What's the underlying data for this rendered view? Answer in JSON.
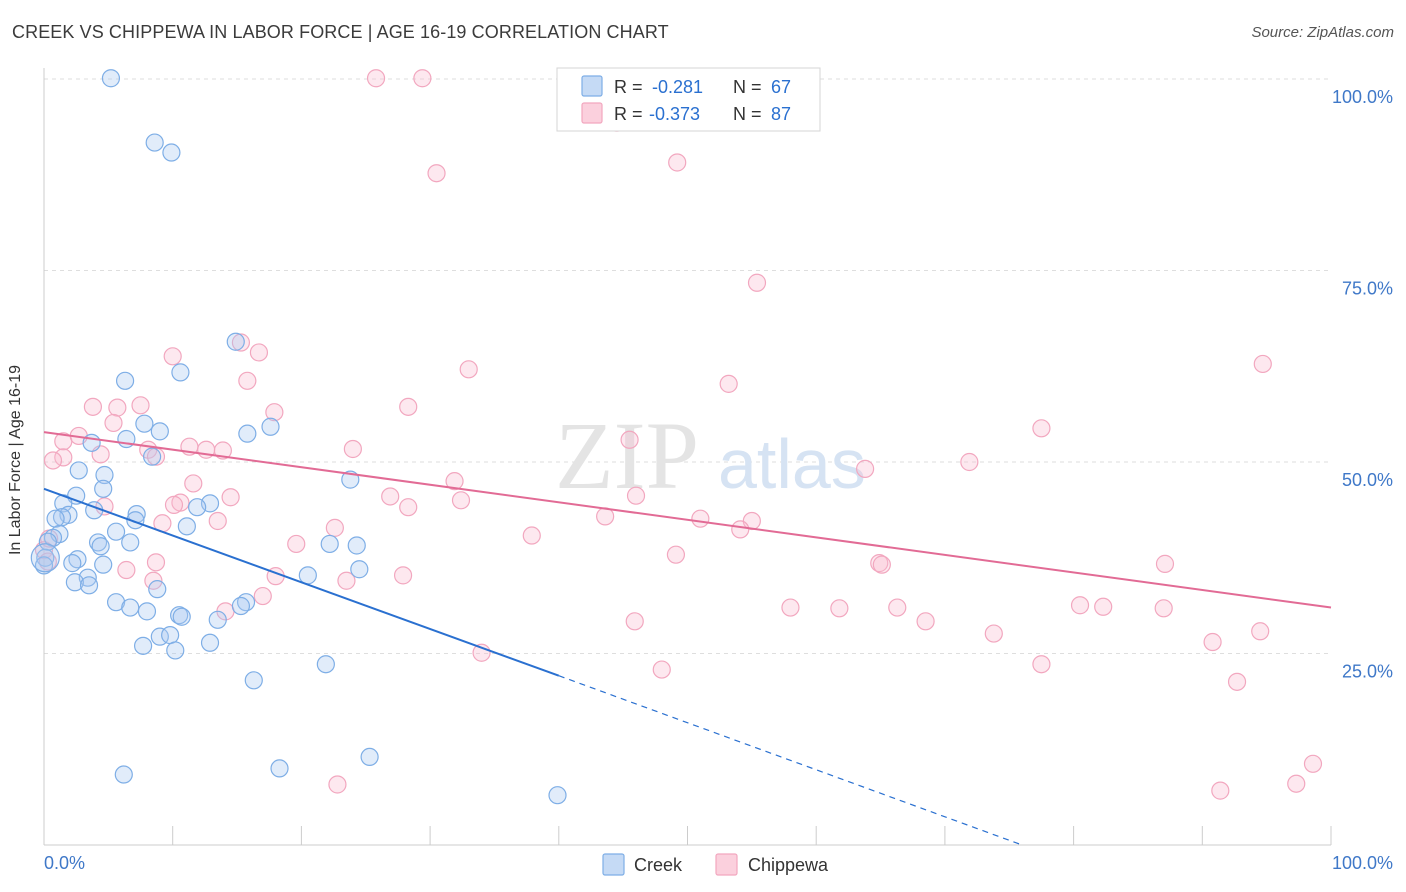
{
  "header": {
    "title": "CREEK VS CHIPPEWA IN LABOR FORCE | AGE 16-19 CORRELATION CHART",
    "source": "Source: ZipAtlas.com"
  },
  "watermark": {
    "zip": "ZIP",
    "atlas": "atlas"
  },
  "legend_top": {
    "rows": [
      {
        "r_label": "R =",
        "r_value": "-0.281",
        "n_label": "N =",
        "n_value": "67",
        "color": "#7eaee6"
      },
      {
        "r_label": "R =",
        "r_value": "-0.373",
        "n_label": "N =",
        "n_value": "87",
        "color": "#f2a7bf"
      }
    ]
  },
  "legend_bottom": {
    "items": [
      "Creek",
      "Chippewa"
    ]
  },
  "chart_data": {
    "type": "scatter",
    "title": "CREEK VS CHIPPEWA IN LABOR FORCE | AGE 16-19 CORRELATION CHART",
    "ylabel": "In Labor Force | Age 16-19",
    "xlabel": "",
    "xlim": [
      0,
      100
    ],
    "ylim": [
      0,
      102
    ],
    "x_tick_labels": [
      "0.0%",
      "100.0%"
    ],
    "y_tick_values": [
      25,
      50,
      75,
      100
    ],
    "y_tick_labels": [
      "25.0%",
      "50.0%",
      "75.0%",
      "100.0%"
    ],
    "grid": true,
    "legend": "top-center",
    "series": [
      {
        "name": "Creek",
        "color": "#7eaee6",
        "line_color": "#2a70d0",
        "trend": {
          "x0": 0,
          "y0": 46.5,
          "x1": 40,
          "y1": 22.1,
          "dash_to_x": 76,
          "dash_to_y": 0
        },
        "points": [
          [
            5.2,
            100.1
          ],
          [
            8.6,
            91.7
          ],
          [
            9.9,
            90.4
          ],
          [
            14.9,
            65.7
          ],
          [
            10.6,
            61.7
          ],
          [
            6.3,
            60.6
          ],
          [
            7.8,
            55.0
          ],
          [
            17.6,
            54.6
          ],
          [
            9.0,
            54.0
          ],
          [
            15.8,
            53.7
          ],
          [
            6.4,
            53.0
          ],
          [
            3.7,
            52.5
          ],
          [
            8.4,
            50.7
          ],
          [
            2.7,
            48.9
          ],
          [
            4.7,
            48.3
          ],
          [
            23.8,
            47.7
          ],
          [
            4.6,
            46.5
          ],
          [
            2.5,
            45.6
          ],
          [
            1.5,
            44.6
          ],
          [
            12.9,
            44.6
          ],
          [
            11.9,
            44.1
          ],
          [
            3.9,
            43.7
          ],
          [
            7.2,
            43.2
          ],
          [
            1.9,
            43.1
          ],
          [
            1.4,
            42.8
          ],
          [
            0.9,
            42.6
          ],
          [
            7.1,
            42.4
          ],
          [
            11.1,
            41.6
          ],
          [
            5.6,
            40.9
          ],
          [
            1.2,
            40.6
          ],
          [
            0.7,
            40.1
          ],
          [
            0.3,
            39.6
          ],
          [
            4.2,
            39.5
          ],
          [
            6.7,
            39.5
          ],
          [
            22.2,
            39.3
          ],
          [
            24.3,
            39.1
          ],
          [
            4.4,
            39.0
          ],
          [
            0.1,
            37.5
          ],
          [
            2.6,
            37.3
          ],
          [
            2.2,
            36.8
          ],
          [
            4.6,
            36.6
          ],
          [
            0.0,
            36.5
          ],
          [
            24.5,
            36.0
          ],
          [
            20.5,
            35.2
          ],
          [
            3.4,
            34.9
          ],
          [
            2.4,
            34.3
          ],
          [
            3.5,
            33.9
          ],
          [
            8.8,
            33.4
          ],
          [
            5.6,
            31.7
          ],
          [
            15.7,
            31.7
          ],
          [
            15.3,
            31.2
          ],
          [
            6.7,
            31.0
          ],
          [
            8.0,
            30.5
          ],
          [
            10.5,
            30.0
          ],
          [
            10.7,
            29.8
          ],
          [
            13.5,
            29.4
          ],
          [
            9.0,
            27.2
          ],
          [
            9.8,
            27.4
          ],
          [
            7.7,
            26.0
          ],
          [
            12.9,
            26.4
          ],
          [
            10.2,
            25.4
          ],
          [
            21.9,
            23.6
          ],
          [
            16.3,
            21.5
          ],
          [
            25.3,
            11.5
          ],
          [
            18.3,
            10.0
          ],
          [
            6.2,
            9.2
          ],
          [
            39.9,
            6.5
          ]
        ]
      },
      {
        "name": "Chippewa",
        "color": "#f2a7bf",
        "line_color": "#e26b95",
        "trend": {
          "x0": 0,
          "y0": 53.9,
          "x1": 100,
          "y1": 31.0
        },
        "points": [
          [
            25.8,
            100.1
          ],
          [
            29.4,
            100.1
          ],
          [
            44.5,
            94.3
          ],
          [
            49.2,
            89.1
          ],
          [
            30.5,
            87.7
          ],
          [
            55.4,
            73.4
          ],
          [
            15.3,
            65.6
          ],
          [
            10.0,
            63.8
          ],
          [
            16.7,
            64.3
          ],
          [
            94.7,
            62.8
          ],
          [
            33.0,
            62.1
          ],
          [
            15.8,
            60.6
          ],
          [
            53.2,
            60.2
          ],
          [
            7.5,
            57.4
          ],
          [
            5.7,
            57.1
          ],
          [
            3.8,
            57.2
          ],
          [
            17.9,
            56.5
          ],
          [
            28.3,
            57.2
          ],
          [
            5.4,
            55.1
          ],
          [
            77.5,
            54.4
          ],
          [
            1.5,
            52.7
          ],
          [
            2.7,
            53.4
          ],
          [
            45.5,
            52.9
          ],
          [
            11.3,
            52.0
          ],
          [
            12.6,
            51.6
          ],
          [
            8.1,
            51.6
          ],
          [
            13.9,
            51.5
          ],
          [
            24.0,
            51.7
          ],
          [
            4.4,
            51.0
          ],
          [
            8.7,
            50.7
          ],
          [
            1.5,
            50.6
          ],
          [
            0.7,
            50.2
          ],
          [
            71.9,
            50.0
          ],
          [
            63.8,
            49.1
          ],
          [
            11.6,
            47.2
          ],
          [
            31.9,
            47.5
          ],
          [
            26.9,
            45.5
          ],
          [
            14.5,
            45.4
          ],
          [
            32.4,
            45.0
          ],
          [
            46.0,
            45.6
          ],
          [
            10.6,
            44.7
          ],
          [
            10.1,
            44.4
          ],
          [
            28.3,
            44.1
          ],
          [
            4.7,
            44.2
          ],
          [
            43.6,
            42.9
          ],
          [
            51.0,
            42.6
          ],
          [
            55.0,
            42.3
          ],
          [
            13.5,
            42.3
          ],
          [
            9.2,
            42.0
          ],
          [
            22.6,
            41.4
          ],
          [
            54.1,
            41.2
          ],
          [
            37.9,
            40.4
          ],
          [
            19.6,
            39.3
          ],
          [
            0.0,
            38.5
          ],
          [
            49.1,
            37.9
          ],
          [
            8.7,
            36.9
          ],
          [
            64.9,
            36.8
          ],
          [
            65.1,
            36.6
          ],
          [
            87.1,
            36.7
          ],
          [
            6.4,
            35.9
          ],
          [
            18.0,
            35.1
          ],
          [
            27.9,
            35.2
          ],
          [
            8.5,
            34.5
          ],
          [
            23.5,
            34.5
          ],
          [
            17.0,
            32.5
          ],
          [
            14.1,
            30.5
          ],
          [
            58.0,
            31.0
          ],
          [
            61.8,
            30.9
          ],
          [
            66.3,
            31.0
          ],
          [
            80.5,
            31.3
          ],
          [
            82.3,
            31.1
          ],
          [
            87.0,
            30.9
          ],
          [
            68.5,
            29.2
          ],
          [
            45.9,
            29.2
          ],
          [
            73.8,
            27.6
          ],
          [
            94.5,
            27.9
          ],
          [
            90.8,
            26.5
          ],
          [
            34.0,
            25.1
          ],
          [
            48.0,
            22.9
          ],
          [
            77.5,
            23.6
          ],
          [
            92.7,
            21.3
          ],
          [
            98.6,
            10.6
          ],
          [
            22.8,
            7.9
          ],
          [
            97.3,
            8.0
          ],
          [
            91.4,
            7.1
          ],
          [
            0.3,
            37.0
          ],
          [
            0.4,
            40.0
          ]
        ]
      }
    ]
  }
}
